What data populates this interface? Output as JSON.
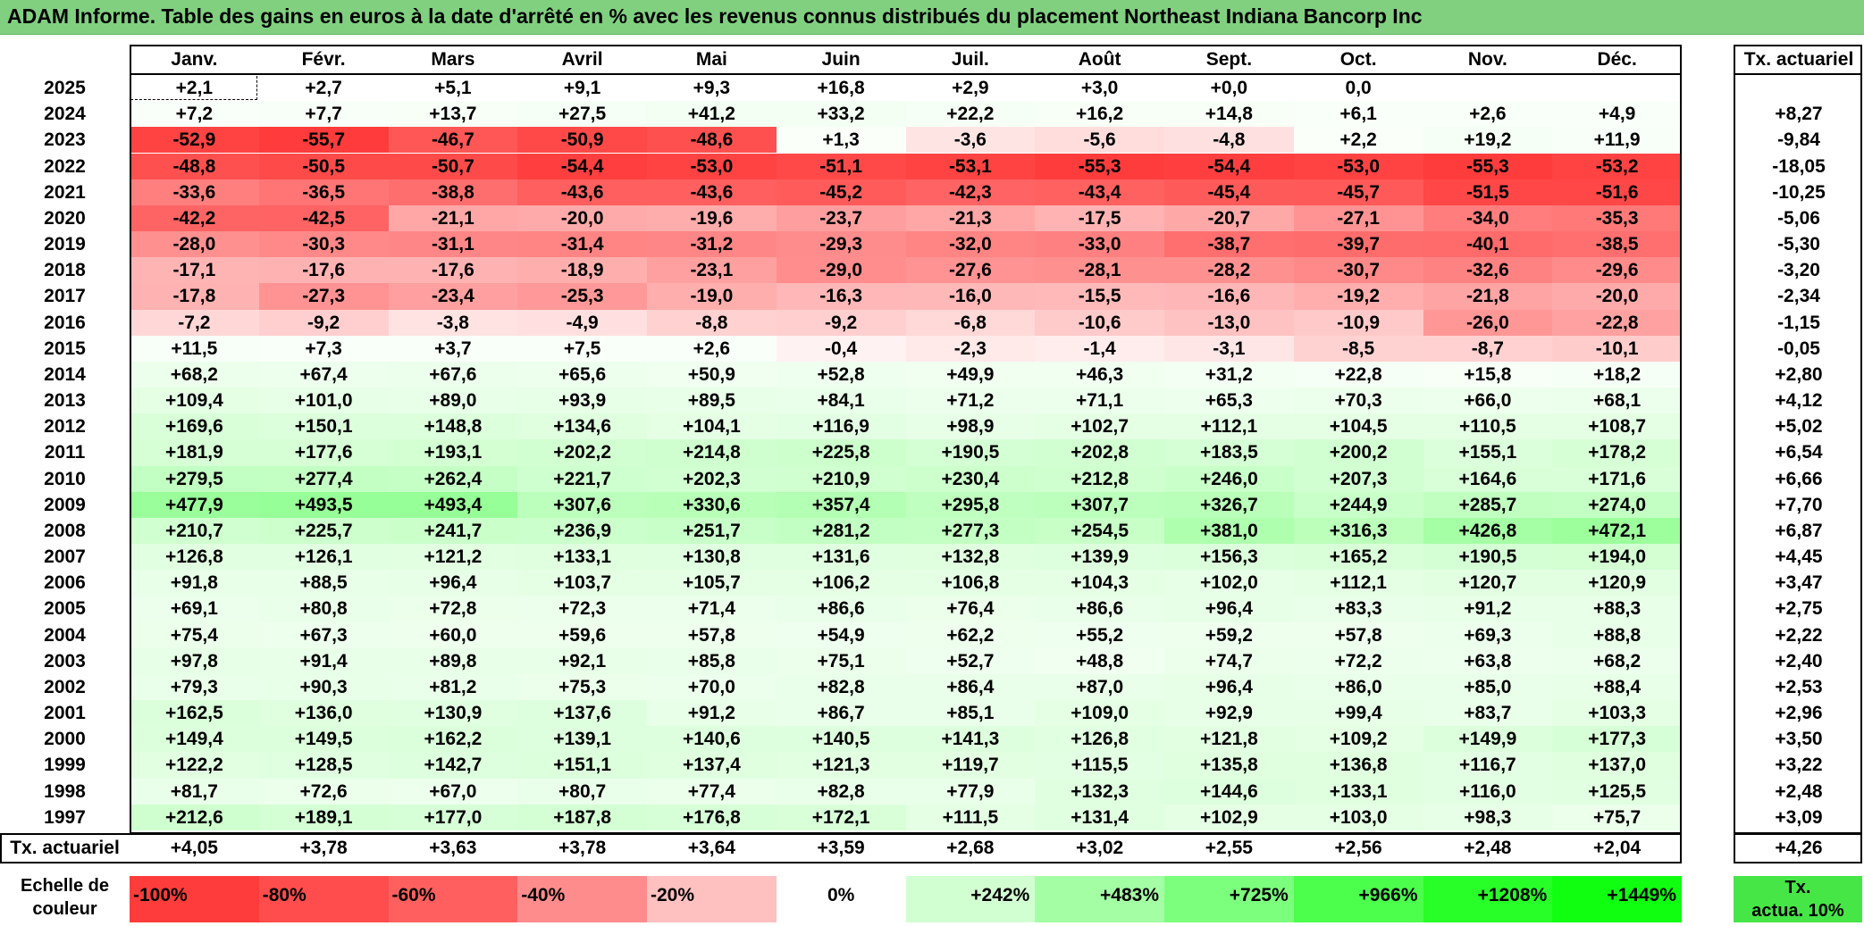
{
  "title": "ADAM Informe. Table des gains en euros à la date d'arrêté en % avec les revenus connus distribués du placement Northeast Indiana Bancorp Inc",
  "months": [
    "Janv.",
    "Févr.",
    "Mars",
    "Avril",
    "Mai",
    "Juin",
    "Juil.",
    "Août",
    "Sept.",
    "Oct.",
    "Nov.",
    "Déc."
  ],
  "rate_header": "Tx. actuariel",
  "rows": [
    {
      "year": "2025",
      "values": [
        "+2,1",
        "+2,7",
        "+5,1",
        "+9,1",
        "+9,3",
        "+16,8",
        "+2,9",
        "+3,0",
        "+0,0",
        "0,0",
        "",
        ""
      ],
      "rate": ""
    },
    {
      "year": "2024",
      "values": [
        "+7,2",
        "+7,7",
        "+13,7",
        "+27,5",
        "+41,2",
        "+33,2",
        "+22,2",
        "+16,2",
        "+14,8",
        "+6,1",
        "+2,6",
        "+4,9"
      ],
      "rate": "+8,27"
    },
    {
      "year": "2023",
      "values": [
        "-52,9",
        "-55,7",
        "-46,7",
        "-50,9",
        "-48,6",
        "+1,3",
        "-3,6",
        "-5,6",
        "-4,8",
        "+2,2",
        "+19,2",
        "+11,9"
      ],
      "rate": "-9,84"
    },
    {
      "year": "2022",
      "values": [
        "-48,8",
        "-50,5",
        "-50,7",
        "-54,4",
        "-53,0",
        "-51,1",
        "-53,1",
        "-55,3",
        "-54,4",
        "-53,0",
        "-55,3",
        "-53,2"
      ],
      "rate": "-18,05"
    },
    {
      "year": "2021",
      "values": [
        "-33,6",
        "-36,5",
        "-38,8",
        "-43,6",
        "-43,6",
        "-45,2",
        "-42,3",
        "-43,4",
        "-45,4",
        "-45,7",
        "-51,5",
        "-51,6"
      ],
      "rate": "-10,25"
    },
    {
      "year": "2020",
      "values": [
        "-42,2",
        "-42,5",
        "-21,1",
        "-20,0",
        "-19,6",
        "-23,7",
        "-21,3",
        "-17,5",
        "-20,7",
        "-27,1",
        "-34,0",
        "-35,3"
      ],
      "rate": "-5,06"
    },
    {
      "year": "2019",
      "values": [
        "-28,0",
        "-30,3",
        "-31,1",
        "-31,4",
        "-31,2",
        "-29,3",
        "-32,0",
        "-33,0",
        "-38,7",
        "-39,7",
        "-40,1",
        "-38,5"
      ],
      "rate": "-5,30"
    },
    {
      "year": "2018",
      "values": [
        "-17,1",
        "-17,6",
        "-17,6",
        "-18,9",
        "-23,1",
        "-29,0",
        "-27,6",
        "-28,1",
        "-28,2",
        "-30,7",
        "-32,6",
        "-29,6"
      ],
      "rate": "-3,20"
    },
    {
      "year": "2017",
      "values": [
        "-17,8",
        "-27,3",
        "-23,4",
        "-25,3",
        "-19,0",
        "-16,3",
        "-16,0",
        "-15,5",
        "-16,6",
        "-19,2",
        "-21,8",
        "-20,0"
      ],
      "rate": "-2,34"
    },
    {
      "year": "2016",
      "values": [
        "-7,2",
        "-9,2",
        "-3,8",
        "-4,9",
        "-8,8",
        "-9,2",
        "-6,8",
        "-10,6",
        "-13,0",
        "-10,9",
        "-26,0",
        "-22,8"
      ],
      "rate": "-1,15"
    },
    {
      "year": "2015",
      "values": [
        "+11,5",
        "+7,3",
        "+3,7",
        "+7,5",
        "+2,6",
        "-0,4",
        "-2,3",
        "-1,4",
        "-3,1",
        "-8,5",
        "-8,7",
        "-10,1"
      ],
      "rate": "-0,05"
    },
    {
      "year": "2014",
      "values": [
        "+68,2",
        "+67,4",
        "+67,6",
        "+65,6",
        "+50,9",
        "+52,8",
        "+49,9",
        "+46,3",
        "+31,2",
        "+22,8",
        "+15,8",
        "+18,2"
      ],
      "rate": "+2,80"
    },
    {
      "year": "2013",
      "values": [
        "+109,4",
        "+101,0",
        "+89,0",
        "+93,9",
        "+89,5",
        "+84,1",
        "+71,2",
        "+71,1",
        "+65,3",
        "+70,3",
        "+66,0",
        "+68,1"
      ],
      "rate": "+4,12"
    },
    {
      "year": "2012",
      "values": [
        "+169,6",
        "+150,1",
        "+148,8",
        "+134,6",
        "+104,1",
        "+116,9",
        "+98,9",
        "+102,7",
        "+112,1",
        "+104,5",
        "+110,5",
        "+108,7"
      ],
      "rate": "+5,02"
    },
    {
      "year": "2011",
      "values": [
        "+181,9",
        "+177,6",
        "+193,1",
        "+202,2",
        "+214,8",
        "+225,8",
        "+190,5",
        "+202,8",
        "+183,5",
        "+200,2",
        "+155,1",
        "+178,2"
      ],
      "rate": "+6,54"
    },
    {
      "year": "2010",
      "values": [
        "+279,5",
        "+277,4",
        "+262,4",
        "+221,7",
        "+202,3",
        "+210,9",
        "+230,4",
        "+212,8",
        "+246,0",
        "+207,3",
        "+164,6",
        "+171,6"
      ],
      "rate": "+6,66"
    },
    {
      "year": "2009",
      "values": [
        "+477,9",
        "+493,5",
        "+493,4",
        "+307,6",
        "+330,6",
        "+357,4",
        "+295,8",
        "+307,7",
        "+326,7",
        "+244,9",
        "+285,7",
        "+274,0"
      ],
      "rate": "+7,70"
    },
    {
      "year": "2008",
      "values": [
        "+210,7",
        "+225,7",
        "+241,7",
        "+236,9",
        "+251,7",
        "+281,2",
        "+277,3",
        "+254,5",
        "+381,0",
        "+316,3",
        "+426,8",
        "+472,1"
      ],
      "rate": "+6,87"
    },
    {
      "year": "2007",
      "values": [
        "+126,8",
        "+126,1",
        "+121,2",
        "+133,1",
        "+130,8",
        "+131,6",
        "+132,8",
        "+139,9",
        "+156,3",
        "+165,2",
        "+190,5",
        "+194,0"
      ],
      "rate": "+4,45"
    },
    {
      "year": "2006",
      "values": [
        "+91,8",
        "+88,5",
        "+96,4",
        "+103,7",
        "+105,7",
        "+106,2",
        "+106,8",
        "+104,3",
        "+102,0",
        "+112,1",
        "+120,7",
        "+120,9"
      ],
      "rate": "+3,47"
    },
    {
      "year": "2005",
      "values": [
        "+69,1",
        "+80,8",
        "+72,8",
        "+72,3",
        "+71,4",
        "+86,6",
        "+76,4",
        "+86,6",
        "+96,4",
        "+83,3",
        "+91,2",
        "+88,3"
      ],
      "rate": "+2,75"
    },
    {
      "year": "2004",
      "values": [
        "+75,4",
        "+67,3",
        "+60,0",
        "+59,6",
        "+57,8",
        "+54,9",
        "+62,2",
        "+55,2",
        "+59,2",
        "+57,8",
        "+69,3",
        "+88,8"
      ],
      "rate": "+2,22"
    },
    {
      "year": "2003",
      "values": [
        "+97,8",
        "+91,4",
        "+89,8",
        "+92,1",
        "+85,8",
        "+75,1",
        "+52,7",
        "+48,8",
        "+74,7",
        "+72,2",
        "+63,8",
        "+68,2"
      ],
      "rate": "+2,40"
    },
    {
      "year": "2002",
      "values": [
        "+79,3",
        "+90,3",
        "+81,2",
        "+75,3",
        "+70,0",
        "+82,8",
        "+86,4",
        "+87,0",
        "+96,4",
        "+86,0",
        "+85,0",
        "+88,4"
      ],
      "rate": "+2,53"
    },
    {
      "year": "2001",
      "values": [
        "+162,5",
        "+136,0",
        "+130,9",
        "+137,6",
        "+91,2",
        "+86,7",
        "+85,1",
        "+109,0",
        "+92,9",
        "+99,4",
        "+83,7",
        "+103,3"
      ],
      "rate": "+2,96"
    },
    {
      "year": "2000",
      "values": [
        "+149,4",
        "+149,5",
        "+162,2",
        "+139,1",
        "+140,6",
        "+140,5",
        "+141,3",
        "+126,8",
        "+121,8",
        "+109,2",
        "+149,9",
        "+177,3"
      ],
      "rate": "+3,50"
    },
    {
      "year": "1999",
      "values": [
        "+122,2",
        "+128,5",
        "+142,7",
        "+151,1",
        "+137,4",
        "+121,3",
        "+119,7",
        "+115,5",
        "+135,8",
        "+136,8",
        "+116,7",
        "+137,0"
      ],
      "rate": "+3,22"
    },
    {
      "year": "1998",
      "values": [
        "+81,7",
        "+72,6",
        "+67,0",
        "+80,7",
        "+77,4",
        "+82,8",
        "+77,9",
        "+132,3",
        "+144,6",
        "+133,1",
        "+116,0",
        "+125,5"
      ],
      "rate": "+2,48"
    },
    {
      "year": "1997",
      "values": [
        "+212,6",
        "+189,1",
        "+177,0",
        "+187,8",
        "+176,8",
        "+172,1",
        "+111,5",
        "+131,4",
        "+102,9",
        "+103,0",
        "+98,3",
        "+75,7"
      ],
      "rate": "+3,09"
    }
  ],
  "footer": {
    "label": "Tx. actuariel",
    "values": [
      "+4,05",
      "+3,78",
      "+3,63",
      "+3,78",
      "+3,64",
      "+3,59",
      "+2,68",
      "+3,02",
      "+2,55",
      "+2,56",
      "+2,48",
      "+2,04"
    ],
    "total": "+4,26"
  },
  "legend": {
    "label_line1": "Echelle de",
    "label_line2": "couleur",
    "scale": [
      {
        "label": "-100%",
        "color": "#ff3c3c",
        "align": "left"
      },
      {
        "label": "-80%",
        "color": "#ff4c4c",
        "align": "left"
      },
      {
        "label": "-60%",
        "color": "#ff5f5f",
        "align": "left"
      },
      {
        "label": "-40%",
        "color": "#ff8c8c",
        "align": "left"
      },
      {
        "label": "-20%",
        "color": "#ffc0c0",
        "align": "left"
      },
      {
        "label": "0%",
        "color": "#ffffff",
        "align": "center"
      },
      {
        "label": "+242%",
        "color": "#d2ffd2",
        "align": "right"
      },
      {
        "label": "+483%",
        "color": "#a4ffa4",
        "align": "right"
      },
      {
        "label": "+725%",
        "color": "#7cff7c",
        "align": "right"
      },
      {
        "label": "+966%",
        "color": "#4cff4c",
        "align": "right"
      },
      {
        "label": "+1208%",
        "color": "#28ff28",
        "align": "right"
      },
      {
        "label": "+1449%",
        "color": "#10ff10",
        "align": "right"
      }
    ],
    "rate_line1": "Tx.",
    "rate_line2": "actua. 10%",
    "rate_color": "#46e646"
  },
  "colors": {
    "title_bg": "#80d080",
    "neg_strong": "#ff3333",
    "neg_light": "#ffecec",
    "pos_light": "#f2fff2",
    "pos_strong": "#a0ffa0"
  }
}
